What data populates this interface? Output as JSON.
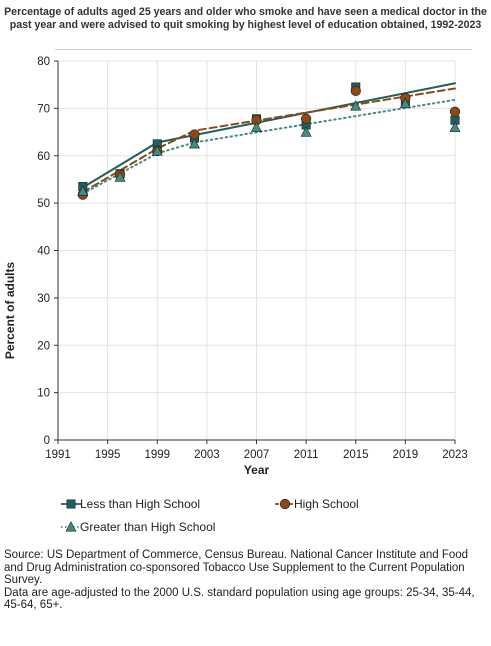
{
  "title_line1": "Percentage of adults aged 25 years and older who smoke and have seen a medical doctor in the",
  "title_line2": "past year and were advised to quit smoking by highest level of education obtained, 1992-2023",
  "source_note": "Source: US Department of Commerce, Census Bureau. National Cancer Institute and Food and Drug Administration co-sponsored Tobacco Use Supplement to the Current Population Survey.",
  "data_note": "Data are age-adjusted to the 2000 U.S. standard population using age groups: 25-34, 35-44, 45-64, 65+.",
  "chart_data": {
    "type": "scatter",
    "title": "Percentage of adults aged 25 years and older who smoke and have seen a medical doctor in the past year and were advised to quit smoking by highest level of education obtained, 1992-2023",
    "xlabel": "Year",
    "ylabel": "Percent of adults",
    "xlim": [
      1991,
      2023
    ],
    "ylim": [
      0,
      80
    ],
    "x_ticks": [
      "1991",
      "1995",
      "1999",
      "2003",
      "2007",
      "2011",
      "2015",
      "2019",
      "2023"
    ],
    "y_ticks": [
      "0",
      "10",
      "20",
      "30",
      "40",
      "50",
      "60",
      "70",
      "80"
    ],
    "grid": true,
    "legend_position": "bottom",
    "series": [
      {
        "name": "Less than High School",
        "color": "#1f5f5f",
        "marker": "square",
        "line_style": "solid",
        "points": [
          {
            "x": 1993,
            "y": 53.5
          },
          {
            "x": 1996,
            "y": 56.2
          },
          {
            "x": 1999,
            "y": 62.5
          },
          {
            "x": 2002,
            "y": 63.8
          },
          {
            "x": 2007,
            "y": 67.8
          },
          {
            "x": 2011,
            "y": 66.5
          },
          {
            "x": 2015,
            "y": 74.5
          },
          {
            "x": 2019,
            "y": 71.5
          },
          {
            "x": 2023,
            "y": 67.5
          }
        ],
        "trend": [
          {
            "x": 1993,
            "y": 53.3
          },
          {
            "x": 1999,
            "y": 62.8
          },
          {
            "x": 2023,
            "y": 75.3
          }
        ]
      },
      {
        "name": "High School",
        "color": "#8c4a12",
        "marker": "circle",
        "line_style": "dashed",
        "points": [
          {
            "x": 1993,
            "y": 51.8
          },
          {
            "x": 1996,
            "y": 56.0
          },
          {
            "x": 1999,
            "y": 61.0
          },
          {
            "x": 2002,
            "y": 64.5
          },
          {
            "x": 2007,
            "y": 67.5
          },
          {
            "x": 2011,
            "y": 67.8
          },
          {
            "x": 2015,
            "y": 73.7
          },
          {
            "x": 2019,
            "y": 72.2
          },
          {
            "x": 2023,
            "y": 69.3
          }
        ],
        "trend": [
          {
            "x": 1993,
            "y": 52.3
          },
          {
            "x": 1999,
            "y": 61.5
          },
          {
            "x": 2002,
            "y": 65.3
          },
          {
            "x": 2023,
            "y": 74.2
          }
        ]
      },
      {
        "name": "Greater than High School",
        "color": "#3f8c86",
        "marker": "triangle",
        "line_style": "dotted",
        "points": [
          {
            "x": 1993,
            "y": 52.5
          },
          {
            "x": 1996,
            "y": 55.5
          },
          {
            "x": 1999,
            "y": 61.0
          },
          {
            "x": 2002,
            "y": 62.5
          },
          {
            "x": 2007,
            "y": 66.0
          },
          {
            "x": 2011,
            "y": 65.0
          },
          {
            "x": 2015,
            "y": 70.5
          },
          {
            "x": 2019,
            "y": 71.0
          },
          {
            "x": 2023,
            "y": 66.0
          }
        ],
        "trend": [
          {
            "x": 1993,
            "y": 52.0
          },
          {
            "x": 1999,
            "y": 60.5
          },
          {
            "x": 2002,
            "y": 62.8
          },
          {
            "x": 2023,
            "y": 71.8
          }
        ]
      }
    ]
  }
}
